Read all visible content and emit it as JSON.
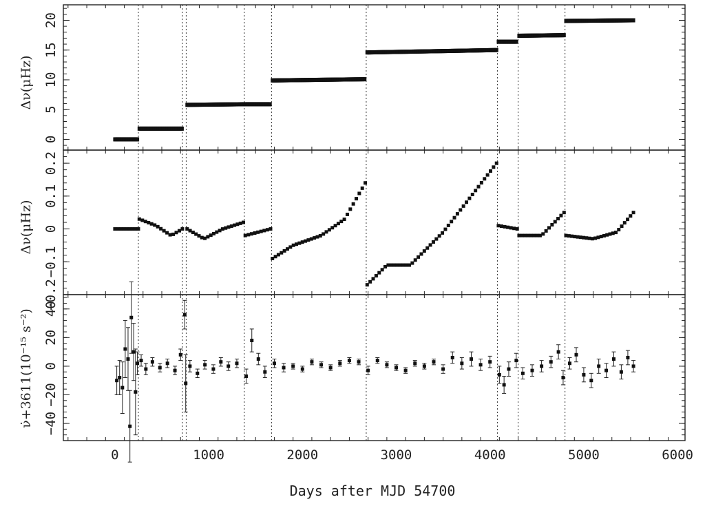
{
  "chart_data": [
    {
      "type": "scatter",
      "title": "",
      "ylabel": "Δν(μHz)",
      "xlim": [
        -550,
        6080
      ],
      "ylim": [
        -1.8,
        22.6
      ],
      "yticks": [
        0,
        5,
        10,
        15,
        20
      ],
      "glitch_epochs": [
        250,
        720,
        760,
        1380,
        1670,
        2680,
        4080,
        4300,
        4800
      ],
      "series": [
        {
          "x": [
            0,
            250
          ],
          "y": [
            0.0,
            0.0
          ]
        },
        {
          "x": [
            260,
            720
          ],
          "y": [
            1.8,
            1.8
          ]
        },
        {
          "x": [
            770,
            1370
          ],
          "y": [
            5.8,
            5.9
          ]
        },
        {
          "x": [
            1390,
            1660
          ],
          "y": [
            5.9,
            5.9
          ]
        },
        {
          "x": [
            1680,
            2670
          ],
          "y": [
            9.9,
            10.1
          ]
        },
        {
          "x": [
            2690,
            4070
          ],
          "y": [
            14.6,
            15.0
          ]
        },
        {
          "x": [
            4090,
            4290
          ],
          "y": [
            16.4,
            16.4
          ]
        },
        {
          "x": [
            4310,
            4790
          ],
          "y": [
            17.4,
            17.5
          ]
        },
        {
          "x": [
            4810,
            5530
          ],
          "y": [
            19.9,
            20.0
          ]
        }
      ]
    },
    {
      "type": "scatter",
      "ylabel": "Δν(μHz)",
      "xlim": [
        -550,
        6080
      ],
      "ylim": [
        -0.2,
        0.24
      ],
      "ytick_labels": [
        "0.2",
        "0.1",
        "0",
        "−0.1",
        "−0.2"
      ],
      "yticks": [
        0.2,
        0.1,
        0,
        -0.1,
        -0.2
      ],
      "segments": [
        {
          "x": [
            0,
            250
          ],
          "y": [
            0.0,
            0.0
          ]
        },
        {
          "x": [
            260,
            440,
            600,
            720
          ],
          "y": [
            0.03,
            0.01,
            -0.02,
            0.0
          ]
        },
        {
          "x": [
            770,
            950,
            1150,
            1370
          ],
          "y": [
            0.0,
            -0.03,
            0.0,
            0.02
          ]
        },
        {
          "x": [
            1390,
            1660
          ],
          "y": [
            -0.02,
            0.0
          ]
        },
        {
          "x": [
            1680,
            1900,
            2200,
            2450,
            2670
          ],
          "y": [
            -0.09,
            -0.05,
            -0.02,
            0.03,
            0.14
          ]
        },
        {
          "x": [
            2690,
            2900,
            3150,
            3500,
            3800,
            4070
          ],
          "y": [
            -0.17,
            -0.11,
            -0.11,
            -0.01,
            0.1,
            0.2
          ]
        },
        {
          "x": [
            4090,
            4290
          ],
          "y": [
            0.01,
            0.0
          ]
        },
        {
          "x": [
            4310,
            4550,
            4790
          ],
          "y": [
            -0.02,
            -0.02,
            0.05
          ]
        },
        {
          "x": [
            4810,
            5100,
            5350,
            5530
          ],
          "y": [
            -0.02,
            -0.03,
            -0.01,
            0.05
          ]
        }
      ]
    },
    {
      "type": "scatter",
      "ylabel": "ν̇+3611(10⁻¹⁵ s⁻²)",
      "xlabel": "Days after MJD 54700",
      "xlim": [
        -550,
        6080
      ],
      "ylim": [
        -52,
        50
      ],
      "yticks": [
        40,
        20,
        0,
        -20,
        -40
      ],
      "ytick_labels": [
        "40",
        "20",
        "0",
        "−20",
        "−40"
      ],
      "xticks": [
        0,
        1000,
        2000,
        3000,
        4000,
        5000,
        6000
      ],
      "points": [
        {
          "x": 20,
          "y": -10,
          "e": 10
        },
        {
          "x": 50,
          "y": -8,
          "e": 12
        },
        {
          "x": 80,
          "y": -15,
          "e": 18
        },
        {
          "x": 110,
          "y": 12,
          "e": 20
        },
        {
          "x": 140,
          "y": 5,
          "e": 22
        },
        {
          "x": 160,
          "y": -42,
          "e": 25
        },
        {
          "x": 175,
          "y": 34,
          "e": 25
        },
        {
          "x": 200,
          "y": 10,
          "e": 20
        },
        {
          "x": 220,
          "y": -18,
          "e": 30
        },
        {
          "x": 240,
          "y": 2,
          "e": 8
        },
        {
          "x": 280,
          "y": 4,
          "e": 4
        },
        {
          "x": 330,
          "y": -2,
          "e": 4
        },
        {
          "x": 400,
          "y": 3,
          "e": 3
        },
        {
          "x": 480,
          "y": -1,
          "e": 3
        },
        {
          "x": 560,
          "y": 2,
          "e": 3
        },
        {
          "x": 640,
          "y": -3,
          "e": 3
        },
        {
          "x": 700,
          "y": 8,
          "e": 4
        },
        {
          "x": 745,
          "y": 36,
          "e": 10
        },
        {
          "x": 755,
          "y": -12,
          "e": 20
        },
        {
          "x": 800,
          "y": 0,
          "e": 4
        },
        {
          "x": 880,
          "y": -5,
          "e": 3
        },
        {
          "x": 960,
          "y": 1,
          "e": 3
        },
        {
          "x": 1050,
          "y": -2,
          "e": 3
        },
        {
          "x": 1130,
          "y": 3,
          "e": 3
        },
        {
          "x": 1210,
          "y": 0,
          "e": 3
        },
        {
          "x": 1300,
          "y": 2,
          "e": 3
        },
        {
          "x": 1400,
          "y": -7,
          "e": 5
        },
        {
          "x": 1460,
          "y": 18,
          "e": 8
        },
        {
          "x": 1530,
          "y": 5,
          "e": 4
        },
        {
          "x": 1600,
          "y": -4,
          "e": 4
        },
        {
          "x": 1700,
          "y": 2,
          "e": 3
        },
        {
          "x": 1800,
          "y": -1,
          "e": 3
        },
        {
          "x": 1900,
          "y": 0,
          "e": 2
        },
        {
          "x": 2000,
          "y": -2,
          "e": 2
        },
        {
          "x": 2100,
          "y": 3,
          "e": 2
        },
        {
          "x": 2200,
          "y": 1,
          "e": 2
        },
        {
          "x": 2300,
          "y": -1,
          "e": 2
        },
        {
          "x": 2400,
          "y": 2,
          "e": 2
        },
        {
          "x": 2500,
          "y": 4,
          "e": 2
        },
        {
          "x": 2600,
          "y": 3,
          "e": 2
        },
        {
          "x": 2700,
          "y": -3,
          "e": 3
        },
        {
          "x": 2800,
          "y": 4,
          "e": 2
        },
        {
          "x": 2900,
          "y": 1,
          "e": 2
        },
        {
          "x": 3000,
          "y": -1,
          "e": 2
        },
        {
          "x": 3100,
          "y": -3,
          "e": 2
        },
        {
          "x": 3200,
          "y": 2,
          "e": 2
        },
        {
          "x": 3300,
          "y": 0,
          "e": 2
        },
        {
          "x": 3400,
          "y": 3,
          "e": 2
        },
        {
          "x": 3500,
          "y": -2,
          "e": 3
        },
        {
          "x": 3600,
          "y": 6,
          "e": 4
        },
        {
          "x": 3700,
          "y": 2,
          "e": 4
        },
        {
          "x": 3800,
          "y": 5,
          "e": 5
        },
        {
          "x": 3900,
          "y": 1,
          "e": 4
        },
        {
          "x": 4000,
          "y": 3,
          "e": 4
        },
        {
          "x": 4100,
          "y": -6,
          "e": 6
        },
        {
          "x": 4150,
          "y": -13,
          "e": 6
        },
        {
          "x": 4200,
          "y": -2,
          "e": 5
        },
        {
          "x": 4280,
          "y": 4,
          "e": 5
        },
        {
          "x": 4350,
          "y": -5,
          "e": 4
        },
        {
          "x": 4450,
          "y": -3,
          "e": 4
        },
        {
          "x": 4550,
          "y": 0,
          "e": 4
        },
        {
          "x": 4650,
          "y": 3,
          "e": 4
        },
        {
          "x": 4730,
          "y": 10,
          "e": 5
        },
        {
          "x": 4780,
          "y": -8,
          "e": 5
        },
        {
          "x": 4850,
          "y": 2,
          "e": 4
        },
        {
          "x": 4920,
          "y": 8,
          "e": 5
        },
        {
          "x": 5000,
          "y": -6,
          "e": 5
        },
        {
          "x": 5080,
          "y": -10,
          "e": 5
        },
        {
          "x": 5160,
          "y": 0,
          "e": 5
        },
        {
          "x": 5240,
          "y": -3,
          "e": 5
        },
        {
          "x": 5320,
          "y": 5,
          "e": 5
        },
        {
          "x": 5400,
          "y": -4,
          "e": 5
        },
        {
          "x": 5470,
          "y": 6,
          "e": 5
        },
        {
          "x": 5530,
          "y": 0,
          "e": 4
        }
      ]
    }
  ],
  "panels": {
    "top_ylabel": "Δν(μHz)",
    "mid_ylabel": "Δν(μHz)",
    "bottom_ylabel": "ν̇+3611(10⁻¹⁵ s⁻²)",
    "xlabel": "Days after MJD 54700"
  }
}
